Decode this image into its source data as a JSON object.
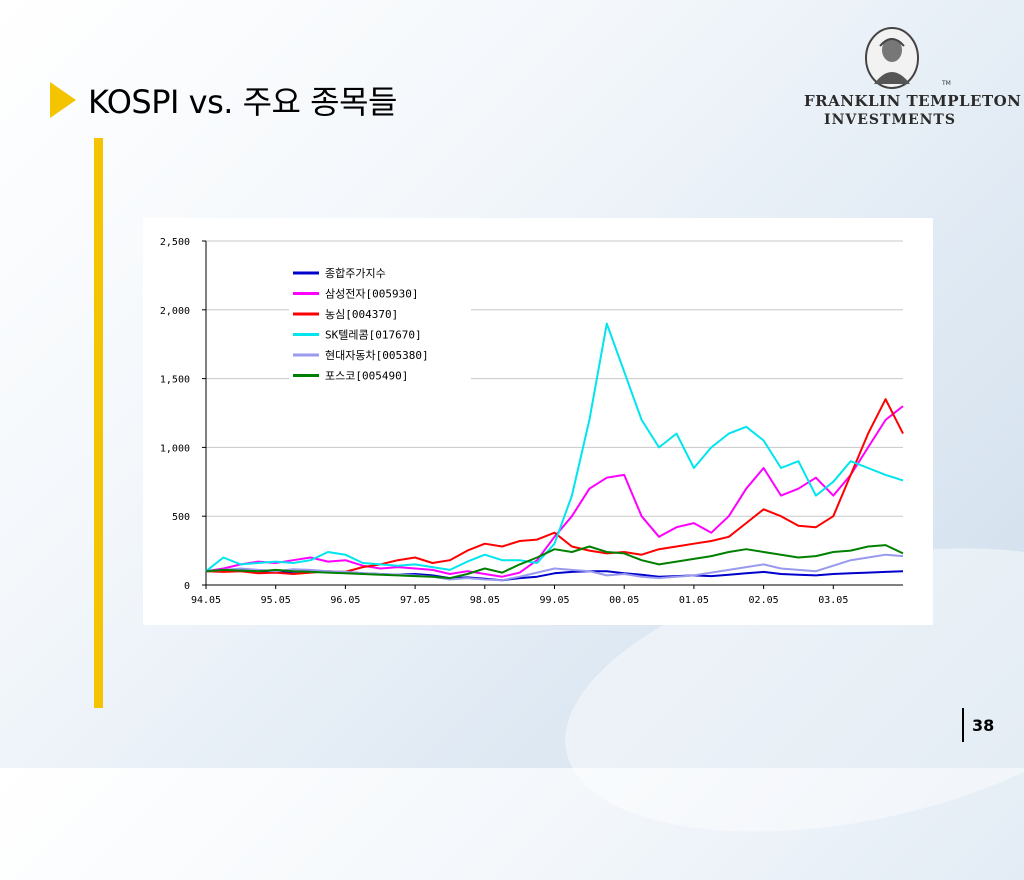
{
  "slide": {
    "title": "KOSPI vs. 주요 종목들",
    "page_number": "38",
    "accent_color": "#f5c400",
    "logo": {
      "line1": "FRANKLIN TEMPLETON",
      "line2": "INVESTMENTS",
      "tm": "TM",
      "icon": "franklin-portrait-icon"
    }
  },
  "chart_data": {
    "type": "line",
    "title": "",
    "xlabel": "",
    "ylabel": "",
    "ylim": [
      0,
      2500
    ],
    "yticks": [
      0,
      500,
      1000,
      1500,
      2000,
      2500
    ],
    "ytick_labels": [
      "0",
      "500",
      "1,000",
      "1,500",
      "2,000",
      "2,500"
    ],
    "xlim": [
      "1994-05",
      "2004-05"
    ],
    "xtick_labels": [
      "94.05",
      "95.05",
      "96.05",
      "97.05",
      "98.05",
      "99.05",
      "00.05",
      "01.05",
      "02.05",
      "03.05"
    ],
    "grid": true,
    "legend_position": "upper-left",
    "x": [
      "1994-05",
      "1994-08",
      "1994-11",
      "1995-02",
      "1995-05",
      "1995-08",
      "1995-11",
      "1996-02",
      "1996-05",
      "1996-08",
      "1996-11",
      "1997-02",
      "1997-05",
      "1997-08",
      "1997-11",
      "1998-02",
      "1998-05",
      "1998-08",
      "1998-11",
      "1999-02",
      "1999-05",
      "1999-08",
      "1999-11",
      "2000-02",
      "2000-05",
      "2000-08",
      "2000-11",
      "2001-02",
      "2001-05",
      "2001-08",
      "2001-11",
      "2002-02",
      "2002-05",
      "2002-08",
      "2002-11",
      "2003-02",
      "2003-05",
      "2003-08",
      "2003-11",
      "2004-02",
      "2004-05"
    ],
    "series": [
      {
        "name": "종합주가지수",
        "color": "#0000cc",
        "values": [
          100,
          105,
          108,
          100,
          90,
          95,
          100,
          92,
          95,
          85,
          80,
          75,
          80,
          70,
          50,
          55,
          45,
          35,
          50,
          60,
          85,
          95,
          100,
          100,
          85,
          75,
          60,
          65,
          70,
          65,
          75,
          85,
          95,
          80,
          75,
          70,
          80,
          85,
          90,
          95,
          100
        ]
      },
      {
        "name": "삼성전자[005930]",
        "color": "#ff00ff",
        "values": [
          100,
          120,
          150,
          170,
          160,
          180,
          200,
          170,
          180,
          140,
          120,
          130,
          120,
          110,
          80,
          100,
          80,
          60,
          90,
          180,
          350,
          500,
          700,
          780,
          800,
          500,
          350,
          420,
          450,
          380,
          500,
          700,
          850,
          650,
          700,
          780,
          650,
          800,
          1000,
          1200,
          1300
        ]
      },
      {
        "name": "농심[004370]",
        "color": "#ff0000",
        "values": [
          100,
          95,
          100,
          85,
          90,
          80,
          90,
          100,
          95,
          130,
          150,
          180,
          200,
          160,
          180,
          250,
          300,
          280,
          320,
          330,
          380,
          280,
          250,
          230,
          240,
          220,
          260,
          280,
          300,
          320,
          350,
          450,
          550,
          500,
          430,
          420,
          500,
          800,
          1100,
          1350,
          1100
        ]
      },
      {
        "name": "SK텔레콤[017670]",
        "color": "#00e5ee",
        "values": [
          100,
          200,
          150,
          160,
          170,
          160,
          180,
          240,
          220,
          160,
          150,
          140,
          150,
          130,
          110,
          170,
          220,
          180,
          180,
          160,
          300,
          650,
          1200,
          1900,
          1550,
          1200,
          1000,
          1100,
          850,
          1000,
          1100,
          1150,
          1050,
          850,
          900,
          650,
          750,
          900,
          850,
          800,
          760
        ]
      },
      {
        "name": "현대자동차[005380]",
        "color": "#9999ee",
        "values": [
          100,
          110,
          120,
          110,
          100,
          115,
          110,
          100,
          95,
          85,
          80,
          75,
          70,
          60,
          40,
          50,
          40,
          35,
          60,
          90,
          120,
          110,
          100,
          70,
          80,
          60,
          50,
          60,
          70,
          90,
          110,
          130,
          150,
          120,
          110,
          100,
          140,
          180,
          200,
          220,
          210
        ]
      },
      {
        "name": "포스코[005490]",
        "color": "#008000",
        "values": [
          100,
          110,
          105,
          100,
          110,
          100,
          95,
          90,
          85,
          80,
          75,
          70,
          65,
          60,
          50,
          80,
          120,
          90,
          150,
          200,
          260,
          240,
          280,
          240,
          230,
          180,
          150,
          170,
          190,
          210,
          240,
          260,
          240,
          220,
          200,
          210,
          240,
          250,
          280,
          290,
          230
        ]
      }
    ]
  }
}
